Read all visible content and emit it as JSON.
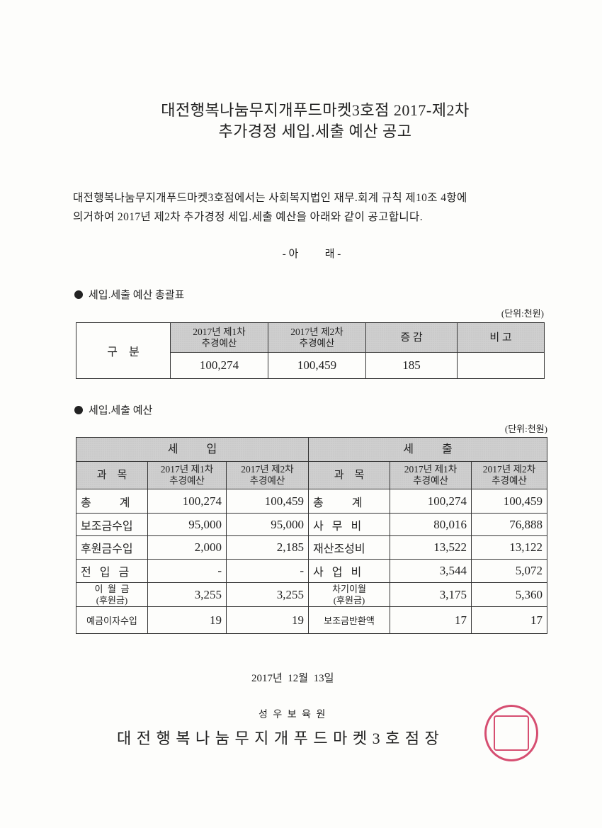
{
  "title": {
    "line1": "대전행복나눔무지개푸드마켓3호점 2017-제2차",
    "line2": "추가경정 세입.세출 예산 공고"
  },
  "intro": {
    "line1": "대전행복나눔무지개푸드마켓3호점에서는 사회복지법인 재무.회계 규칙 제10조 4항에",
    "line2": "의거하여 2017년 제2차 추가경정  세입.세출 예산을 아래와 같이 공고합니다."
  },
  "below_marker": "- 아          래 -",
  "summary": {
    "heading": "세입.세출 예산 총괄표",
    "unit": "(단위:천원)",
    "row_label": "구    분",
    "headers": [
      "2017년 제1차\n추경예산",
      "2017년 제2차\n추경예산",
      "증 감",
      "비 고"
    ],
    "values": [
      "100,274",
      "100,459",
      "185",
      ""
    ]
  },
  "budget": {
    "heading": "세입.세출 예산",
    "unit": "(단위:천원)",
    "revenue_title": "세          입",
    "expense_title": "세          출",
    "col_item": "과    목",
    "col_first": "2017년 제1차\n추경예산",
    "col_second": "2017년 제2차\n추경예산",
    "revenue_rows": [
      {
        "item": "총          계",
        "first": "100,274",
        "second": "100,459"
      },
      {
        "item": "보조금수입",
        "first": "95,000",
        "second": "95,000"
      },
      {
        "item": "후원금수입",
        "first": "2,000",
        "second": "2,185"
      },
      {
        "item": "전   입   금",
        "first": "-",
        "second": "-"
      },
      {
        "item": "이  월  금\n(후원금)",
        "first": "3,255",
        "second": "3,255"
      },
      {
        "item": "예금이자수입",
        "first": "19",
        "second": "19"
      }
    ],
    "expense_rows": [
      {
        "item": "총          계",
        "first": "100,274",
        "second": "100,459"
      },
      {
        "item": "사   무   비",
        "first": "80,016",
        "second": "76,888"
      },
      {
        "item": "재산조성비",
        "first": "13,522",
        "second": "13,122"
      },
      {
        "item": "사   업   비",
        "first": "3,544",
        "second": "5,072"
      },
      {
        "item": "차기이월\n(후원금)",
        "first": "3,175",
        "second": "5,360"
      },
      {
        "item": "보조금반환액",
        "first": "17",
        "second": "17"
      }
    ]
  },
  "date": "2017년  12월  13일",
  "org": "성 우 보 육 원",
  "signer": "대 전 행 복 나 눔 무 지 개 푸 드 마 켓 3 호 점 장",
  "stamp": {
    "text": "대전행복나눔무지개푸드마켓3호점장",
    "color": "#d0305a"
  }
}
